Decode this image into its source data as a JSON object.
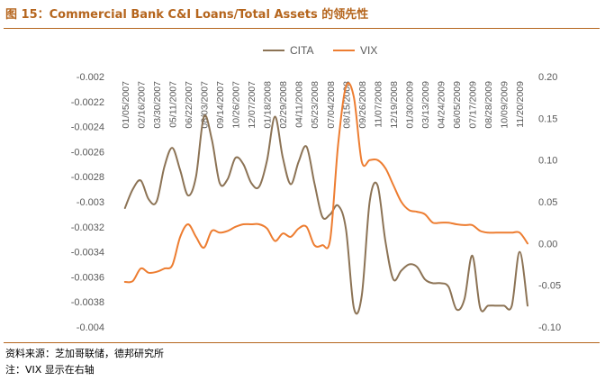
{
  "header": {
    "title": "图 15：Commercial Bank C&I Loans/Total Assets 的领先性"
  },
  "footer": {
    "source": "资料来源：芝加哥联储，德邦研究所",
    "note": "注：VIX 显示在右轴"
  },
  "chart_data": {
    "type": "line",
    "title": "",
    "legend": {
      "position": "top-center",
      "entries": [
        "CITA",
        "VIX"
      ]
    },
    "grid": false,
    "x_ticks": [
      "01/05/2007",
      "02/16/2007",
      "03/30/2007",
      "05/11/2007",
      "06/22/2007",
      "08/03/2007",
      "09/14/2007",
      "10/26/2007",
      "12/07/2007",
      "01/18/2008",
      "02/29/2008",
      "04/11/2008",
      "05/23/2008",
      "07/04/2008",
      "08/15/2008",
      "09/26/2008",
      "11/07/2008",
      "12/19/2008",
      "01/30/2009",
      "03/13/2009",
      "04/24/2009",
      "06/05/2009",
      "07/17/2009",
      "08/28/2009",
      "10/09/2009",
      "11/20/2009"
    ],
    "y_left": {
      "ticks": [
        "-0.002",
        "-0.0022",
        "-0.0024",
        "-0.0026",
        "-0.0028",
        "-0.003",
        "-0.0032",
        "-0.0034",
        "-0.0036",
        "-0.0038",
        "-0.004"
      ],
      "range": [
        -0.004,
        -0.002
      ]
    },
    "y_right": {
      "ticks": [
        "0.20",
        "0.15",
        "0.10",
        "0.05",
        "0.00",
        "-0.05",
        "-0.10"
      ],
      "range": [
        -0.1,
        0.2
      ]
    },
    "series": [
      {
        "name": "CITA",
        "axis": "left",
        "color": "#8c7355",
        "x": [
          0,
          0.5,
          1,
          1.5,
          2,
          2.5,
          3,
          3.5,
          4,
          4.5,
          5,
          5.5,
          6,
          6.5,
          7,
          7.5,
          8,
          8.5,
          9,
          9.5,
          10,
          10.5,
          11,
          11.5,
          12,
          12.5,
          13,
          13.5,
          14,
          14.5,
          15,
          15.5,
          16,
          16.5,
          17,
          17.5,
          18,
          18.5,
          19,
          19.5,
          20,
          20.5,
          21,
          21.5,
          22,
          22.5,
          23,
          23.5,
          24,
          24.5,
          25,
          25.5
        ],
        "values": [
          -0.00305,
          -0.0029,
          -0.00283,
          -0.00298,
          -0.003,
          -0.00272,
          -0.00257,
          -0.00275,
          -0.00295,
          -0.0028,
          -0.00232,
          -0.0025,
          -0.00285,
          -0.00282,
          -0.00265,
          -0.0027,
          -0.00285,
          -0.00288,
          -0.00267,
          -0.00232,
          -0.00265,
          -0.00286,
          -0.00268,
          -0.00256,
          -0.00285,
          -0.00312,
          -0.0031,
          -0.00303,
          -0.00322,
          -0.00385,
          -0.00375,
          -0.003,
          -0.00287,
          -0.00332,
          -0.00362,
          -0.00355,
          -0.0035,
          -0.00352,
          -0.00362,
          -0.00365,
          -0.00365,
          -0.00368,
          -0.00386,
          -0.00378,
          -0.00343,
          -0.00385,
          -0.00383,
          -0.00383,
          -0.00383,
          -0.00383,
          -0.0034,
          -0.00383
        ]
      },
      {
        "name": "VIX",
        "axis": "right",
        "color": "#ed7d31",
        "x": [
          0,
          0.5,
          1,
          1.5,
          2,
          2.5,
          3,
          3.5,
          4,
          4.5,
          5,
          5.5,
          6,
          6.5,
          7,
          7.5,
          8,
          8.5,
          9,
          9.5,
          10,
          10.5,
          11,
          11.5,
          12,
          12.5,
          13,
          13.5,
          14,
          14.5,
          15,
          15.5,
          16,
          16.5,
          17,
          17.5,
          18,
          18.5,
          19,
          19.5,
          20,
          20.5,
          21,
          21.5,
          22,
          22.5,
          23,
          23.5,
          24,
          24.5,
          25,
          25.5
        ],
        "values": [
          -0.046,
          -0.045,
          -0.03,
          -0.035,
          -0.034,
          -0.03,
          -0.026,
          0.008,
          0.023,
          0.008,
          -0.005,
          0.015,
          0.013,
          0.015,
          0.02,
          0.023,
          0.023,
          0.023,
          0.018,
          0.003,
          0.012,
          0.008,
          0.018,
          0.02,
          -0.002,
          -0.002,
          0.005,
          0.118,
          0.188,
          0.175,
          0.098,
          0.1,
          0.1,
          0.09,
          0.07,
          0.05,
          0.04,
          0.038,
          0.035,
          0.025,
          0.025,
          0.025,
          0.023,
          0.022,
          0.022,
          0.015,
          0.013,
          0.013,
          0.013,
          0.013,
          0.013,
          0.0
        ]
      }
    ]
  }
}
